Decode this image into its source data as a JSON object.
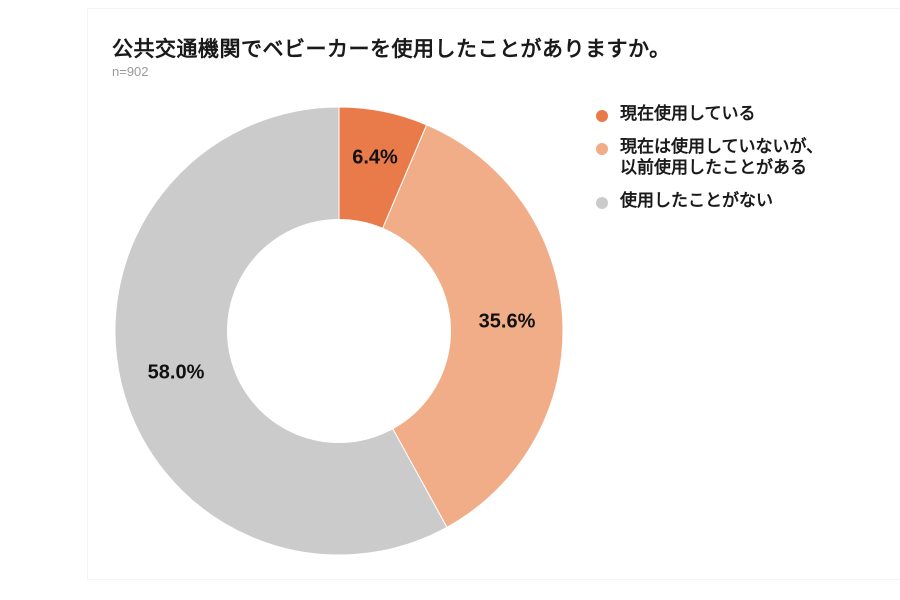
{
  "header": {
    "title": "公共交通機関でベビーカーを使用したことがありますか。",
    "sample_size": "n=902"
  },
  "colors": {
    "current": "#E97B4B",
    "past": "#F1AD87",
    "never": "#CBCBCB"
  },
  "labels": {
    "current": "6.4%",
    "past": "35.6%",
    "never": "58.0%"
  },
  "legend": {
    "items": [
      {
        "lines": [
          "現在使用している"
        ],
        "color": "#E97B4B"
      },
      {
        "lines": [
          "現在は使用していないが、",
          "以前使用したことがある"
        ],
        "color": "#F1AD87"
      },
      {
        "lines": [
          "使用したことがない"
        ],
        "color": "#CBCBCB"
      }
    ]
  },
  "chart_data": {
    "type": "pie",
    "subtype": "donut",
    "title": "公共交通機関でベビーカーを使用したことがありますか。",
    "subtitle": "n=902",
    "categories": [
      "現在使用している",
      "現在は使用していないが、以前使用したことがある",
      "使用したことがない"
    ],
    "values": [
      6.4,
      35.6,
      58.0
    ],
    "unit": "%",
    "colors": [
      "#E97B4B",
      "#F1AD87",
      "#CBCBCB"
    ],
    "legend_position": "right",
    "start_angle": "12 o'clock",
    "direction": "clockwise"
  }
}
